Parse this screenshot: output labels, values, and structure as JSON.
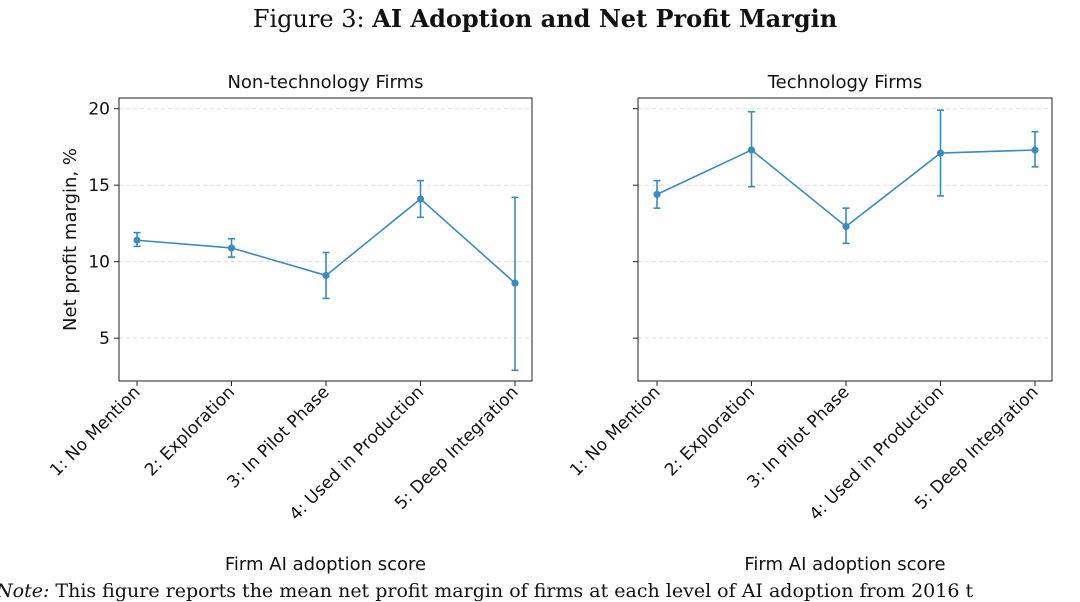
{
  "figure": {
    "title_prefix": "Figure 3:",
    "title_main": "AI Adoption and Net Profit Margin",
    "note_label": "Note:",
    "note_text": "This figure reports the mean net profit margin of firms at each level of AI adoption from 2016 t"
  },
  "colors": {
    "series": "#3a8cc0",
    "grid": "#dddddd",
    "axis": "#222222"
  },
  "chart_data": [
    {
      "type": "line",
      "title": "Non-technology Firms",
      "xlabel": "Firm AI adoption score",
      "ylabel": "Net profit margin, %",
      "categories": [
        "1: No Mention",
        "2: Exploration",
        "3: In Pilot Phase",
        "4: Used in Production",
        "5: Deep Integration"
      ],
      "values": [
        11.4,
        10.9,
        9.1,
        14.1,
        8.6
      ],
      "error_low": [
        11.0,
        10.3,
        7.6,
        12.9,
        2.9
      ],
      "error_high": [
        11.9,
        11.5,
        10.6,
        15.3,
        14.2
      ],
      "y_ticks": [
        5,
        10,
        15,
        20
      ],
      "ylim": [
        2.2,
        20.7
      ],
      "grid": "horizontal dashed"
    },
    {
      "type": "line",
      "title": "Technology Firms",
      "xlabel": "Firm AI adoption score",
      "ylabel": "",
      "categories": [
        "1: No Mention",
        "2: Exploration",
        "3: In Pilot Phase",
        "4: Used in Production",
        "5: Deep Integration"
      ],
      "values": [
        14.4,
        17.3,
        12.3,
        17.1,
        17.3
      ],
      "error_low": [
        13.5,
        14.9,
        11.2,
        14.3,
        16.2
      ],
      "error_high": [
        15.3,
        19.8,
        13.5,
        19.9,
        18.5
      ],
      "y_ticks": [
        5,
        10,
        15,
        20
      ],
      "ylim": [
        2.2,
        20.7
      ],
      "grid": "horizontal dashed"
    }
  ]
}
